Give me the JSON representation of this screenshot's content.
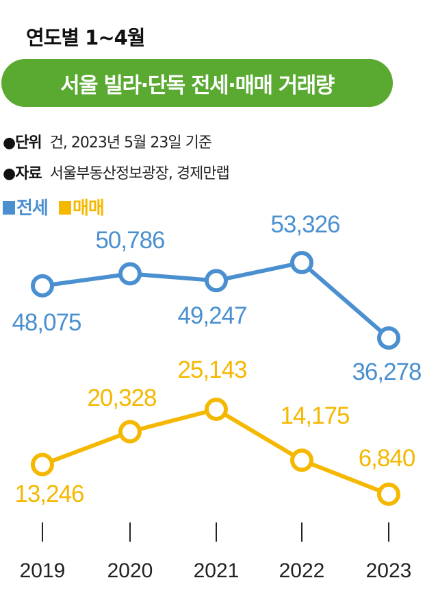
{
  "chart_data": {
    "type": "line",
    "subtitle": "연도별 1~4월",
    "title": "서울 빌라·단독 전세·매매 거래량",
    "notes": [
      {
        "label": "●단위",
        "text": "건, 2023년 5월 23일 기준"
      },
      {
        "label": "●자료",
        "text": "서울부동산정보광장, 경제만랩"
      }
    ],
    "legend_placement": "top-left",
    "grid": false,
    "categories": [
      "2019",
      "2020",
      "2021",
      "2022",
      "2023"
    ],
    "series": [
      {
        "name": "전세",
        "color": "#4a90d0",
        "values": [
          48075,
          50786,
          49247,
          53326,
          36278
        ],
        "labels": [
          "48,075",
          "50,786",
          "49,247",
          "53,326",
          "36,278"
        ]
      },
      {
        "name": "매매",
        "color": "#f5b800",
        "values": [
          13246,
          20328,
          25143,
          14175,
          6840
        ],
        "labels": [
          "13,246",
          "20,328",
          "25,143",
          "14,175",
          "6,840"
        ]
      }
    ]
  }
}
